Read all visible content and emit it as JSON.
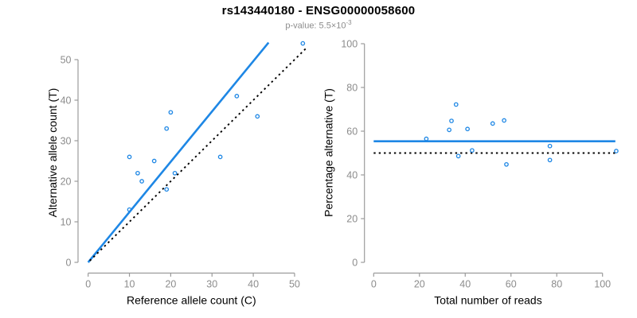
{
  "title": "rs143440180 - ENSG00000058600",
  "subtitle": {
    "prefix": "p-value: 5.5×10",
    "exponent": "-3"
  },
  "colors": {
    "accent_blue": "#1e87e5",
    "dotted_line": "#000000",
    "axis": "#9b9b9b",
    "tick_labels": "#8c8c8c",
    "axis_titles": "#000000",
    "title": "#000000",
    "subtitle": "#8c8c8c",
    "background": "#ffffff"
  },
  "chart_data": [
    {
      "id": "left-scatter",
      "type": "scatter",
      "xlabel": "Reference allele count (C)",
      "ylabel": "Alternative allele count (T)",
      "xlim": [
        0,
        50
      ],
      "ylim": [
        0,
        50
      ],
      "xticks": [
        0,
        10,
        20,
        30,
        40,
        50
      ],
      "yticks": [
        0,
        10,
        20,
        30,
        40,
        50
      ],
      "grid": false,
      "legend": "none",
      "marker": "open-circle",
      "points": [
        [
          10,
          13
        ],
        [
          10,
          26
        ],
        [
          12,
          22
        ],
        [
          13,
          20
        ],
        [
          16,
          25
        ],
        [
          19,
          18
        ],
        [
          19,
          33
        ],
        [
          20,
          37
        ],
        [
          21,
          22
        ],
        [
          32,
          26
        ],
        [
          36,
          41
        ],
        [
          41,
          36
        ],
        [
          52,
          54
        ]
      ],
      "lines": [
        {
          "name": "fit-line",
          "style": "solid",
          "x1": 0,
          "y1": 0,
          "x2": 43.7,
          "y2": 54.2
        },
        {
          "name": "identity-line",
          "style": "dotted",
          "x1": 0.4,
          "y1": 0.4,
          "x2": 53.2,
          "y2": 53.2
        }
      ]
    },
    {
      "id": "right-scatter",
      "type": "scatter",
      "xlabel": "Total number of reads",
      "ylabel": "Percentage alternative (T)",
      "xlim": [
        0,
        100
      ],
      "ylim": [
        0,
        100
      ],
      "xticks": [
        0,
        20,
        40,
        60,
        80,
        100
      ],
      "yticks": [
        0,
        20,
        40,
        60,
        80,
        100
      ],
      "grid": false,
      "legend": "none",
      "marker": "open-circle",
      "points": [
        [
          23,
          56.5
        ],
        [
          33,
          60.6
        ],
        [
          34,
          64.7
        ],
        [
          36,
          72.2
        ],
        [
          37,
          48.6
        ],
        [
          41,
          61.0
        ],
        [
          43,
          51.2
        ],
        [
          52,
          63.5
        ],
        [
          57,
          64.9
        ],
        [
          58,
          44.8
        ],
        [
          77,
          46.8
        ],
        [
          77,
          53.2
        ],
        [
          106,
          50.9
        ]
      ],
      "lines": [
        {
          "name": "mean-percentage-line",
          "style": "solid",
          "x1": 0,
          "y1": 55.4,
          "x2": 105.6,
          "y2": 55.4
        },
        {
          "name": "expected-50-line",
          "style": "dotted",
          "x1": 0,
          "y1": 50,
          "x2": 105.6,
          "y2": 50
        }
      ]
    }
  ]
}
